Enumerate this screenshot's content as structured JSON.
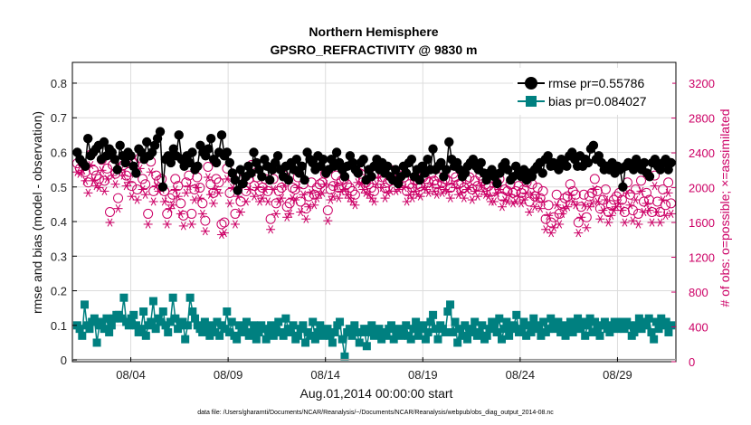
{
  "chart_data": {
    "type": "line",
    "title": "Northern Hemisphere",
    "subtitle": "GPSRO_REFRACTIVITY @ 9830 m",
    "xlabel": "Aug.01,2014 00:00:00 start",
    "ylabel": "rmse and bias (model - observation)",
    "ylabel_right": "# of obs: o=possible; ×=assimilated",
    "xlim": [
      0,
      31
    ],
    "ylim": [
      -0.005,
      0.86
    ],
    "ylim_right": [
      0,
      3440
    ],
    "x_ticks": [
      3,
      8,
      13,
      18,
      23,
      28
    ],
    "x_tick_labels": [
      "08/04",
      "08/09",
      "08/14",
      "08/19",
      "08/24",
      "08/29"
    ],
    "y_ticks": [
      0,
      0.1,
      0.2,
      0.3,
      0.4,
      0.5,
      0.6,
      0.7,
      0.8
    ],
    "y_tick_labels": [
      "0",
      "0.1",
      "0.2",
      "0.3",
      "0.4",
      "0.5",
      "0.6",
      "0.7",
      "0.8"
    ],
    "y_right_ticks": [
      0,
      400,
      800,
      1200,
      1600,
      2000,
      2400,
      2800,
      3200
    ],
    "y_right_tick_labels": [
      "0",
      "400",
      "800",
      "1200",
      "1600",
      "2000",
      "2400",
      "2800",
      "3200"
    ],
    "grid": true,
    "legend_position": "top-right",
    "footnote": "data file: /Users/gharamti/Documents/NCAR/Reanalysis/~/Documents/NCAR/Reanalysis/webpub/obs_diag_output_2014-08.nc",
    "series": [
      {
        "name": "rmse",
        "legend_label": "rmse pr=0.55786",
        "color": "#000000",
        "marker": "circle",
        "axis": "left",
        "values": [
          0.6,
          0.58,
          0.57,
          0.56,
          0.64,
          0.59,
          0.6,
          0.61,
          0.62,
          0.58,
          0.63,
          0.59,
          0.61,
          0.6,
          0.58,
          0.55,
          0.62,
          0.59,
          0.57,
          0.6,
          0.59,
          0.56,
          0.54,
          0.61,
          0.6,
          0.58,
          0.63,
          0.59,
          0.6,
          0.62,
          0.64,
          0.66,
          0.5,
          0.58,
          0.59,
          0.57,
          0.61,
          0.59,
          0.65,
          0.58,
          0.56,
          0.59,
          0.57,
          0.6,
          0.55,
          0.56,
          0.62,
          0.6,
          0.59,
          0.61,
          0.64,
          0.58,
          0.57,
          0.6,
          0.65,
          0.59,
          0.6,
          0.57,
          0.54,
          0.52,
          0.49,
          0.55,
          0.51,
          0.53,
          0.56,
          0.54,
          0.6,
          0.57,
          0.55,
          0.53,
          0.58,
          0.56,
          0.52,
          0.55,
          0.57,
          0.59,
          0.55,
          0.53,
          0.56,
          0.52,
          0.57,
          0.55,
          0.58,
          0.54,
          0.56,
          0.52,
          0.6,
          0.58,
          0.57,
          0.55,
          0.59,
          0.56,
          0.58,
          0.54,
          0.55,
          0.58,
          0.56,
          0.6,
          0.57,
          0.55,
          0.53,
          0.56,
          0.59,
          0.57,
          0.55,
          0.54,
          0.57,
          0.58,
          0.52,
          0.55,
          0.53,
          0.56,
          0.58,
          0.55,
          0.57,
          0.54,
          0.56,
          0.53,
          0.52,
          0.55,
          0.51,
          0.53,
          0.56,
          0.54,
          0.57,
          0.58,
          0.53,
          0.55,
          0.52,
          0.56,
          0.54,
          0.58,
          0.55,
          0.61,
          0.55,
          0.56,
          0.57,
          0.53,
          0.55,
          0.63,
          0.58,
          0.56,
          0.57,
          0.55,
          0.53,
          0.54,
          0.56,
          0.57,
          0.58,
          0.56,
          0.55,
          0.57,
          0.54,
          0.52,
          0.54,
          0.55,
          0.53,
          0.51,
          0.54,
          0.56,
          0.57,
          0.55,
          0.52,
          0.53,
          0.56,
          0.54,
          0.53,
          0.55,
          0.52,
          0.54,
          0.53,
          0.55,
          0.56,
          0.57,
          0.54,
          0.58,
          0.59,
          0.56,
          0.57,
          0.56,
          0.55,
          0.58,
          0.57,
          0.56,
          0.59,
          0.6,
          0.58,
          0.56,
          0.59,
          0.56,
          0.58,
          0.57,
          0.61,
          0.62,
          0.58,
          0.59,
          0.57,
          0.55,
          0.56,
          0.55,
          0.57,
          0.54,
          0.56,
          0.55,
          0.5,
          0.56,
          0.57,
          0.56,
          0.55,
          0.58,
          0.56,
          0.55,
          0.57,
          0.54,
          0.53,
          0.57,
          0.58,
          0.56,
          0.55,
          0.57,
          0.58,
          0.55,
          0.57
        ]
      },
      {
        "name": "bias",
        "legend_label": "bias pr=0.084027",
        "color": "#008080",
        "marker": "square",
        "axis": "left",
        "values": [
          0.1,
          0.09,
          0.07,
          0.16,
          0.1,
          0.09,
          0.11,
          0.12,
          0.05,
          0.1,
          0.11,
          0.09,
          0.12,
          0.08,
          0.1,
          0.12,
          0.13,
          0.13,
          0.12,
          0.18,
          0.11,
          0.1,
          0.12,
          0.13,
          0.1,
          0.08,
          0.09,
          0.14,
          0.07,
          0.1,
          0.11,
          0.17,
          0.09,
          0.12,
          0.11,
          0.14,
          0.1,
          0.08,
          0.11,
          0.18,
          0.12,
          0.09,
          0.1,
          0.11,
          0.06,
          0.1,
          0.18,
          0.14,
          0.12,
          0.1,
          0.09,
          0.08,
          0.11,
          0.09,
          0.07,
          0.1,
          0.08,
          0.11,
          0.07,
          0.1,
          0.09,
          0.14,
          0.08,
          0.11,
          0.07,
          0.06,
          0.1,
          0.08,
          0.09,
          0.11,
          0.07,
          0.08,
          0.1,
          0.06,
          0.08,
          0.1,
          0.09,
          0.06,
          0.08,
          0.1,
          0.07,
          0.09,
          0.11,
          0.08,
          0.07,
          0.12,
          0.09,
          0.08,
          0.1,
          0.06,
          0.07,
          0.09,
          0.1,
          0.05,
          0.08,
          0.07,
          0.11,
          0.06,
          0.08,
          0.1,
          0.07,
          0.08,
          0.09,
          0.07,
          0.05,
          0.08,
          0.1,
          0.11,
          0.06,
          0.01,
          0.08,
          0.09,
          0.07,
          0.1,
          0.08,
          0.05,
          0.08,
          0.09,
          0.04,
          0.08,
          0.1,
          0.07,
          0.08,
          0.09,
          0.06,
          0.08,
          0.07,
          0.09,
          0.1,
          0.06,
          0.08,
          0.09,
          0.07,
          0.08,
          0.1,
          0.07,
          0.06,
          0.09,
          0.11,
          0.07,
          0.09,
          0.1,
          0.06,
          0.08,
          0.11,
          0.13,
          0.09,
          0.06,
          0.1,
          0.09,
          0.08,
          0.14,
          0.16,
          0.08,
          0.11,
          0.05,
          0.09,
          0.07,
          0.1,
          0.06,
          0.08,
          0.09,
          0.11,
          0.07,
          0.08,
          0.1,
          0.06,
          0.07,
          0.09,
          0.11,
          0.1,
          0.08,
          0.12,
          0.06,
          0.09,
          0.11,
          0.07,
          0.09,
          0.1,
          0.13,
          0.08,
          0.09,
          0.11,
          0.07,
          0.1,
          0.08,
          0.12,
          0.1,
          0.09,
          0.07,
          0.11,
          0.08,
          0.09,
          0.12,
          0.1,
          0.09,
          0.11,
          0.08,
          0.1,
          0.07,
          0.09,
          0.11,
          0.08,
          0.1,
          0.12,
          0.09,
          0.11,
          0.07,
          0.1,
          0.12,
          0.08,
          0.11,
          0.09,
          0.07,
          0.1,
          0.11,
          0.09,
          0.08,
          0.1,
          0.11,
          0.09,
          0.11,
          0.1,
          0.09,
          0.11,
          0.1,
          0.07,
          0.08,
          0.1,
          0.12,
          0.09,
          0.11,
          0.1,
          0.12,
          0.08,
          0.06,
          0.11,
          0.09,
          0.12,
          0.1,
          0.11,
          0.08,
          0.1
        ]
      },
      {
        "name": "# obs possible",
        "color": "#cc0066",
        "marker": "open-circle",
        "axis": "right",
        "values": [
          2280,
          2220,
          2280,
          2180,
          2060,
          2380,
          2200,
          2140,
          2100,
          2320,
          2080,
          2220,
          1720,
          2260,
          2160,
          1880,
          2320,
          2260,
          2140,
          2180,
          2020,
          2280,
          1980,
          2340,
          2100,
          2040,
          1700,
          2300,
          1960,
          2140,
          2080,
          2100,
          1960,
          1700,
          1880,
          1920,
          2100,
          2020,
          1820,
          1680,
          2060,
          2140,
          1700,
          1980,
          2120,
          2000,
          1820,
          1620,
          2240,
          2040,
          1940,
          2100,
          2060,
          1580,
          1600,
          2220,
          1940,
          2120,
          1700,
          2020,
          1840,
          2180,
          1960,
          2100,
          2260,
          2020,
          2120,
          1960,
          2000,
          2100,
          1960,
          1640,
          2100,
          1820,
          1960,
          2000,
          2140,
          1780,
          1820,
          2000,
          1980,
          2120,
          1840,
          2040,
          1760,
          1900,
          2060,
          1920,
          2000,
          2040,
          2060,
          2160,
          1740,
          1980,
          2020,
          2140,
          2000,
          2080,
          2100,
          2040,
          2000,
          1960,
          1920,
          2180,
          2160,
          2100,
          2060,
          2040,
          2000,
          1960,
          2160,
          2240,
          2120,
          2000,
          2060,
          2080,
          2200,
          2080,
          2100,
          2140,
          2120,
          1960,
          2040,
          2000,
          2080,
          2040,
          2020,
          2120,
          2100,
          2060,
          2160,
          2080,
          2040,
          2120,
          2060,
          2100,
          2080,
          2000,
          2160,
          2120,
          2040,
          2060,
          2000,
          2100,
          2120,
          1980,
          2080,
          2020,
          2140,
          2080,
          2040,
          2020,
          1960,
          1960,
          2060,
          2100,
          1900,
          1980,
          1960,
          2040,
          1940,
          1960,
          2020,
          1940,
          1980,
          2060,
          1840,
          2040,
          1900,
          2000,
          1880,
          1960,
          1640,
          1800,
          1600,
          1660,
          1920,
          1700,
          1820,
          1880,
          1900,
          2040,
          1960,
          1920,
          1600,
          1780,
          1920,
          1660,
          1900,
          1940,
          2100,
          1960,
          1760,
          1860,
          1980,
          1720,
          1800,
          1860,
          1900,
          1940,
          1860,
          1720,
          2060,
          1920,
          1740,
          1980,
          1700,
          2080,
          1840,
          1940,
          1860,
          1720,
          2140,
          1840,
          1720,
          1980,
          1800,
          2060,
          1820
        ]
      },
      {
        "name": "# obs assimilated",
        "color": "#cc0066",
        "marker": "asterisk",
        "axis": "right",
        "values": [
          2180,
          2160,
          2200,
          2080,
          1940,
          2260,
          2080,
          2020,
          2000,
          2200,
          1960,
          2100,
          1600,
          2140,
          2040,
          1760,
          2200,
          2140,
          2020,
          2060,
          1900,
          2160,
          1860,
          2220,
          1980,
          1920,
          1580,
          2180,
          1840,
          2020,
          1960,
          1980,
          1840,
          1580,
          1760,
          1800,
          1980,
          1900,
          1700,
          1560,
          1940,
          2020,
          1580,
          1860,
          2000,
          1880,
          1700,
          1500,
          2120,
          1920,
          1820,
          1980,
          1940,
          1460,
          1480,
          2100,
          1820,
          2000,
          1580,
          1900,
          1720,
          2060,
          1840,
          1980,
          2140,
          1900,
          2000,
          1840,
          1880,
          1980,
          1840,
          1520,
          1980,
          1700,
          1840,
          1880,
          2020,
          1660,
          1700,
          1880,
          1860,
          2000,
          1720,
          1920,
          1640,
          1780,
          1940,
          1800,
          1880,
          1920,
          1940,
          2040,
          1620,
          1860,
          1900,
          2020,
          1880,
          1960,
          1980,
          1920,
          1880,
          1840,
          1800,
          2060,
          2040,
          1980,
          1940,
          1920,
          1880,
          1840,
          2040,
          2120,
          2000,
          1880,
          1940,
          1960,
          2080,
          1960,
          1980,
          2020,
          2000,
          1840,
          1920,
          1880,
          1960,
          1920,
          1900,
          2000,
          1980,
          1940,
          2040,
          1960,
          1920,
          2000,
          1940,
          1980,
          1960,
          1880,
          2040,
          2000,
          1920,
          1940,
          1880,
          1980,
          2000,
          1860,
          1960,
          1900,
          2020,
          1960,
          1920,
          1900,
          1840,
          1840,
          1940,
          1980,
          1780,
          1860,
          1840,
          1920,
          1820,
          1840,
          1900,
          1820,
          1860,
          1940,
          1720,
          1920,
          1780,
          1880,
          1760,
          1840,
          1520,
          1680,
          1480,
          1540,
          1800,
          1580,
          1700,
          1760,
          1780,
          1920,
          1840,
          1800,
          1480,
          1660,
          1800,
          1540,
          1780,
          1820,
          1980,
          1840,
          1640,
          1740,
          1860,
          1600,
          1680,
          1740,
          1780,
          1820,
          1740,
          1600,
          1940,
          1800,
          1620,
          1860,
          1580,
          1960,
          1720,
          1820,
          1740,
          1600,
          2020,
          1720,
          1600,
          1860,
          1680,
          1940,
          1700
        ]
      }
    ]
  }
}
